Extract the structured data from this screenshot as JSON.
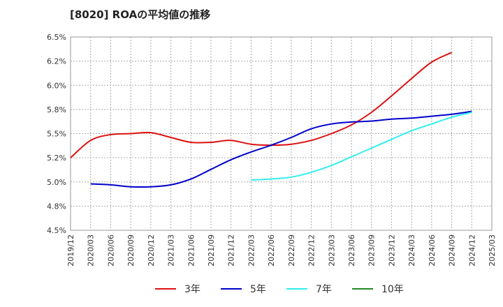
{
  "chart_data": {
    "type": "line",
    "title": "[8020]  ROAの平均値の推移",
    "x": [
      "2019/12",
      "2020/03",
      "2020/06",
      "2020/09",
      "2020/12",
      "2021/03",
      "2021/06",
      "2021/09",
      "2021/12",
      "2022/03",
      "2022/06",
      "2022/09",
      "2022/12",
      "2023/03",
      "2023/06",
      "2023/09",
      "2023/12",
      "2024/03",
      "2024/06",
      "2024/09",
      "2024/12",
      "2025/03"
    ],
    "y_ticks": [
      "6.5%",
      "6.2%",
      "6.0%",
      "5.8%",
      "5.5%",
      "5.2%",
      "5.0%",
      "4.8%",
      "4.5%"
    ],
    "ylim": [
      4.5,
      6.5
    ],
    "grid": true,
    "legend_position": "bottom",
    "series": [
      {
        "name": "3年",
        "color": "#dd1111",
        "values": [
          5.25,
          5.43,
          5.49,
          5.5,
          5.51,
          5.46,
          5.41,
          5.41,
          5.43,
          5.39,
          5.38,
          5.39,
          5.43,
          5.5,
          5.59,
          5.72,
          5.89,
          6.07,
          6.24,
          6.34,
          null,
          null
        ]
      },
      {
        "name": "5年",
        "color": "#0000cc",
        "values": [
          null,
          4.98,
          4.97,
          4.95,
          4.95,
          4.97,
          5.03,
          5.13,
          5.23,
          5.31,
          5.38,
          5.46,
          5.55,
          5.6,
          5.62,
          5.63,
          5.65,
          5.66,
          5.68,
          5.7,
          5.73,
          null
        ]
      },
      {
        "name": "7年",
        "color": "#33eeee",
        "values": [
          null,
          null,
          null,
          null,
          null,
          null,
          null,
          null,
          null,
          5.02,
          5.03,
          5.05,
          5.1,
          5.17,
          5.26,
          5.35,
          5.44,
          5.53,
          5.6,
          5.67,
          5.72,
          null
        ]
      },
      {
        "name": "10年",
        "color": "#228822",
        "values": [
          null,
          null,
          null,
          null,
          null,
          null,
          null,
          null,
          null,
          null,
          null,
          null,
          null,
          null,
          null,
          null,
          null,
          null,
          null,
          null,
          null,
          null
        ]
      }
    ]
  }
}
